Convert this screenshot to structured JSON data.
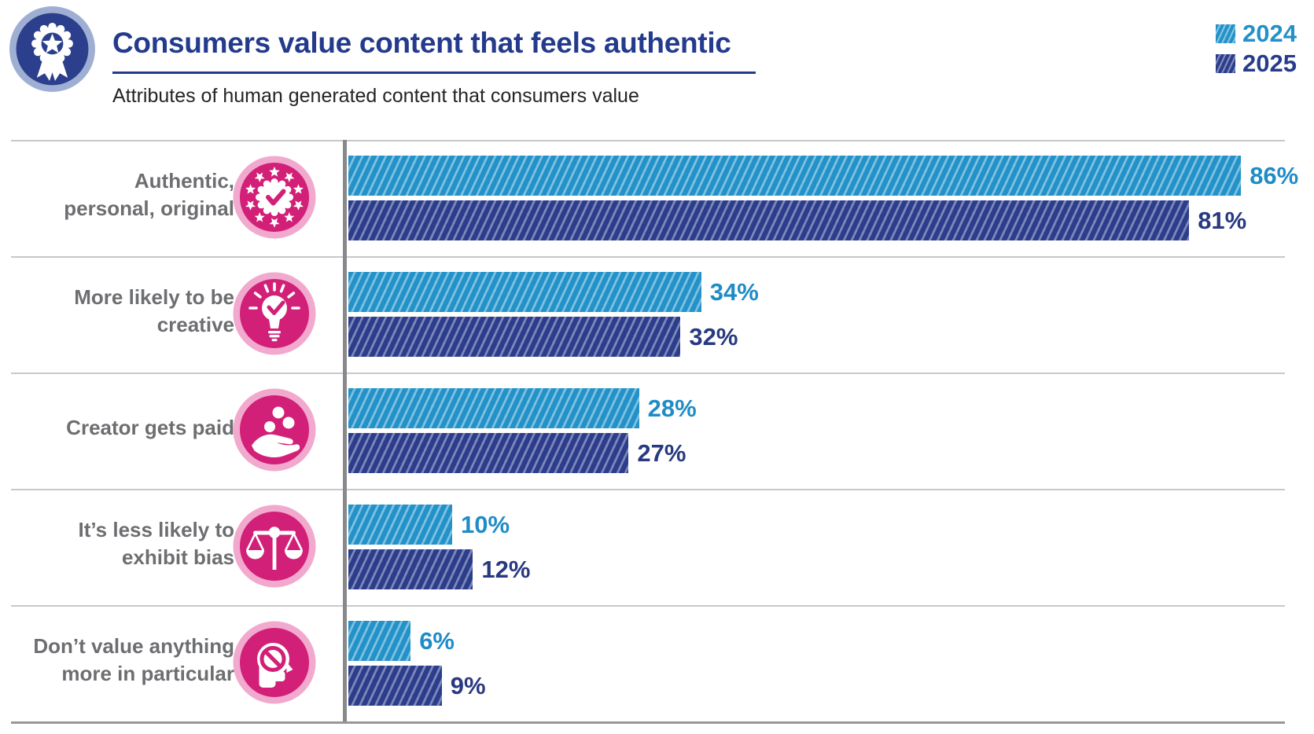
{
  "header": {
    "title": "Consumers value content that feels authentic",
    "subtitle": "Attributes of human generated content that consumers value",
    "badge_icon": "award-rosette-icon"
  },
  "legend": [
    {
      "label": "2024",
      "color": "#2191C8"
    },
    {
      "label": "2025",
      "color": "#2C3D8C"
    }
  ],
  "rows": [
    {
      "label_lines": [
        "Authentic,",
        "personal, original"
      ],
      "icon": "certified-badge-icon",
      "y2024": {
        "value": 86,
        "label": "86%"
      },
      "y2025": {
        "value": 81,
        "label": "81%"
      }
    },
    {
      "label_lines": [
        "More likely to be",
        "creative"
      ],
      "icon": "lightbulb-check-icon",
      "y2024": {
        "value": 34,
        "label": "34%"
      },
      "y2025": {
        "value": 32,
        "label": "32%"
      }
    },
    {
      "label_lines": [
        "Creator gets paid"
      ],
      "icon": "hand-coins-icon",
      "y2024": {
        "value": 28,
        "label": "28%"
      },
      "y2025": {
        "value": 27,
        "label": "27%"
      }
    },
    {
      "label_lines": [
        "It’s less likely to",
        "exhibit bias"
      ],
      "icon": "balance-scale-icon",
      "y2024": {
        "value": 10,
        "label": "10%"
      },
      "y2025": {
        "value": 12,
        "label": "12%"
      }
    },
    {
      "label_lines": [
        "Don’t value anything",
        "more in particular"
      ],
      "icon": "head-prohibition-icon",
      "y2024": {
        "value": 6,
        "label": "6%"
      },
      "y2025": {
        "value": 9,
        "label": "9%"
      }
    }
  ],
  "chart_data": {
    "type": "bar",
    "orientation": "horizontal",
    "title": "Consumers value content that feels authentic",
    "subtitle": "Attributes of human generated content that consumers value",
    "categories": [
      "Authentic, personal, original",
      "More likely to be creative",
      "Creator gets paid",
      "It’s less likely to exhibit bias",
      "Don’t value anything more in particular"
    ],
    "series": [
      {
        "name": "2024",
        "color": "#2292C9",
        "values": [
          86,
          34,
          28,
          10,
          6
        ]
      },
      {
        "name": "2025",
        "color": "#2C3D8C",
        "values": [
          81,
          32,
          27,
          12,
          9
        ]
      }
    ],
    "unit": "%",
    "xlim": [
      0,
      100
    ],
    "legend_position": "top-right",
    "value_labels": true,
    "bar_fill": "diagonal-hatch",
    "grid": false
  },
  "colors": {
    "title": "#243B8D",
    "subtitle_text": "#262324",
    "category_label": "#6D6E71",
    "bar_2024": "#2292C9",
    "bar_2025": "#2C3D8C",
    "value_2024": "#1F8CC6",
    "value_2025": "#28397F",
    "icon_pink": "#D21F77",
    "icon_pink_light": "#F2A9CE",
    "badge_navy": "#2C3F8C",
    "badge_ring": "#9FAED3",
    "axis_line": "#87898C",
    "separator": "#C7C8CA"
  }
}
